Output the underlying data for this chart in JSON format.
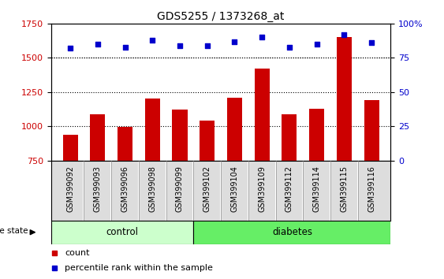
{
  "title": "GDS5255 / 1373268_at",
  "samples": [
    "GSM399092",
    "GSM399093",
    "GSM399096",
    "GSM399098",
    "GSM399099",
    "GSM399102",
    "GSM399104",
    "GSM399109",
    "GSM399112",
    "GSM399114",
    "GSM399115",
    "GSM399116"
  ],
  "counts": [
    935,
    1090,
    995,
    1200,
    1120,
    1040,
    1210,
    1420,
    1085,
    1130,
    1650,
    1190
  ],
  "percentiles": [
    82,
    85,
    83,
    88,
    84,
    84,
    87,
    90,
    83,
    85,
    92,
    86
  ],
  "group_labels": [
    "control",
    "diabetes"
  ],
  "group_sizes": [
    5,
    7
  ],
  "control_color": "#CCFFCC",
  "diabetes_color": "#66EE66",
  "bar_color": "#CC0000",
  "dot_color": "#0000CC",
  "ylim_left": [
    750,
    1750
  ],
  "yticks_left": [
    750,
    1000,
    1250,
    1500,
    1750
  ],
  "ylim_right": [
    0,
    100
  ],
  "yticks_right": [
    0,
    25,
    50,
    75,
    100
  ],
  "grid_values": [
    1000,
    1250,
    1500
  ],
  "legend_items": [
    "count",
    "percentile rank within the sample"
  ],
  "label_color_left": "#CC0000",
  "label_color_right": "#0000CC",
  "sample_bg": "#DDDDDD",
  "figsize": [
    5.63,
    3.54
  ],
  "dpi": 100
}
